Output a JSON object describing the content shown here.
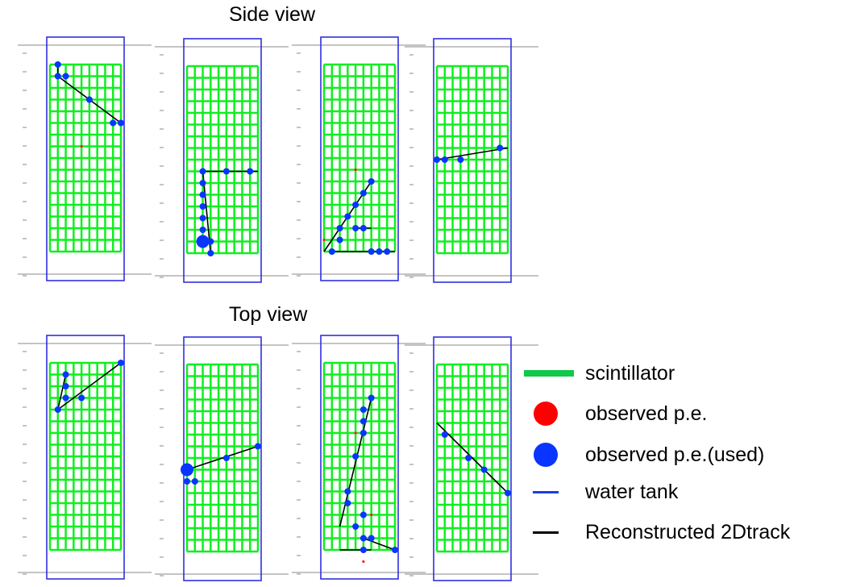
{
  "views": [
    {
      "title": "Side view",
      "panels": [
        {
          "hits": [
            [
              1,
              16,
              1
            ],
            [
              1,
              15,
              0
            ],
            [
              2,
              15,
              1
            ],
            [
              5,
              13,
              0
            ],
            [
              8,
              11,
              0
            ],
            [
              9,
              11,
              0
            ],
            [
              4,
              9,
              0
            ]
          ],
          "used": [
            [
              1,
              16,
              1
            ],
            [
              1,
              15,
              1
            ],
            [
              2,
              15,
              1
            ],
            [
              5,
              13,
              1
            ],
            [
              8,
              11,
              1
            ],
            [
              9,
              11,
              1
            ]
          ],
          "tracks": [
            [
              [
                1,
                16
              ],
              [
                1,
                15
              ],
              [
                9,
                11
              ]
            ]
          ]
        },
        {
          "hits": [
            [
              2,
              7,
              1
            ],
            [
              2,
              6,
              0
            ],
            [
              2,
              5,
              0
            ],
            [
              2,
              4,
              0
            ],
            [
              2,
              3,
              0
            ],
            [
              2,
              2,
              1
            ],
            [
              2,
              1,
              2
            ],
            [
              3,
              1,
              1
            ],
            [
              3,
              0,
              1
            ],
            [
              8,
              7,
              1
            ],
            [
              5,
              7,
              0
            ]
          ],
          "used": [
            [
              2,
              7,
              1
            ],
            [
              2,
              6,
              1
            ],
            [
              2,
              5,
              1
            ],
            [
              2,
              4,
              1
            ],
            [
              2,
              3,
              1
            ],
            [
              2,
              2,
              1
            ],
            [
              2,
              1,
              2
            ],
            [
              3,
              1,
              1
            ],
            [
              3,
              0,
              1
            ],
            [
              8,
              7,
              1
            ],
            [
              5,
              7,
              1
            ]
          ],
          "tracks": [
            [
              [
                2,
                7
              ],
              [
                9,
                7
              ]
            ],
            [
              [
                2,
                7
              ],
              [
                3,
                0
              ]
            ]
          ]
        },
        {
          "hits": [
            [
              1,
              0,
              0
            ],
            [
              2,
              1,
              1
            ],
            [
              2,
              2,
              0
            ],
            [
              3,
              3,
              0
            ],
            [
              4,
              4,
              1
            ],
            [
              5,
              5,
              1
            ],
            [
              6,
              6,
              1
            ],
            [
              4,
              2,
              0
            ],
            [
              5,
              2,
              1
            ],
            [
              6,
              0,
              0
            ],
            [
              7,
              0,
              1
            ],
            [
              8,
              0,
              0
            ],
            [
              0,
              1,
              0
            ],
            [
              4,
              7,
              0
            ]
          ],
          "used": [
            [
              1,
              0,
              1
            ],
            [
              2,
              1,
              1
            ],
            [
              2,
              2,
              1
            ],
            [
              3,
              3,
              1
            ],
            [
              4,
              4,
              1
            ],
            [
              5,
              5,
              1
            ],
            [
              6,
              6,
              1
            ],
            [
              4,
              2,
              1
            ],
            [
              5,
              2,
              1
            ],
            [
              6,
              0,
              1
            ],
            [
              7,
              0,
              1
            ],
            [
              8,
              0,
              1
            ]
          ],
          "tracks": [
            [
              [
                0,
                0
              ],
              [
                6,
                6
              ]
            ],
            [
              [
                1,
                0
              ],
              [
                9,
                0
              ]
            ],
            [
              [
                4,
                2
              ],
              [
                6,
                2
              ]
            ]
          ]
        },
        {
          "hits": [
            [
              1,
              8,
              0
            ],
            [
              3,
              8,
              1
            ],
            [
              8,
              9,
              1
            ],
            [
              0,
              8,
              0
            ]
          ],
          "used": [
            [
              1,
              8,
              1
            ],
            [
              3,
              8,
              1
            ],
            [
              8,
              9,
              1
            ],
            [
              0,
              8,
              1
            ]
          ],
          "tracks": [
            [
              [
                0,
                8
              ],
              [
                9,
                9
              ]
            ]
          ]
        }
      ]
    },
    {
      "title": "Top view",
      "panels": [
        {
          "hits": [
            [
              2,
              15,
              1
            ],
            [
              2,
              14,
              1
            ],
            [
              2,
              13,
              1
            ],
            [
              1,
              12,
              1
            ],
            [
              4,
              13,
              0
            ],
            [
              9,
              16,
              1
            ]
          ],
          "used": [
            [
              2,
              15,
              1
            ],
            [
              2,
              14,
              1
            ],
            [
              2,
              13,
              1
            ],
            [
              1,
              12,
              1
            ],
            [
              4,
              13,
              1
            ],
            [
              9,
              16,
              1
            ]
          ],
          "tracks": [
            [
              [
                1,
                12
              ],
              [
                9,
                16
              ]
            ],
            [
              [
                1,
                12
              ],
              [
                2,
                15
              ]
            ]
          ]
        },
        {
          "hits": [
            [
              0,
              7,
              2
            ],
            [
              0,
              6,
              1
            ],
            [
              1,
              6,
              1
            ],
            [
              5,
              8,
              0
            ],
            [
              9,
              9,
              0
            ]
          ],
          "used": [
            [
              0,
              7,
              2
            ],
            [
              0,
              6,
              1
            ],
            [
              1,
              6,
              1
            ],
            [
              5,
              8,
              1
            ],
            [
              9,
              9,
              1
            ]
          ],
          "tracks": [
            [
              [
                0,
                7
              ],
              [
                9,
                9
              ]
            ]
          ]
        },
        {
          "hits": [
            [
              6,
              13,
              0
            ],
            [
              5,
              12,
              1
            ],
            [
              5,
              11,
              1
            ],
            [
              5,
              10,
              1
            ],
            [
              4,
              8,
              0
            ],
            [
              3,
              5,
              1
            ],
            [
              3,
              4,
              1
            ],
            [
              5,
              3,
              0
            ],
            [
              4,
              2,
              0
            ],
            [
              5,
              1,
              0
            ],
            [
              6,
              1,
              0
            ],
            [
              9,
              0,
              0
            ],
            [
              5,
              0,
              0
            ],
            [
              4,
              10,
              0
            ],
            [
              6,
              3,
              0
            ],
            [
              5,
              -1,
              0
            ]
          ],
          "used": [
            [
              6,
              13,
              1
            ],
            [
              5,
              12,
              1
            ],
            [
              5,
              11,
              1
            ],
            [
              5,
              10,
              1
            ],
            [
              4,
              8,
              1
            ],
            [
              3,
              5,
              1
            ],
            [
              3,
              4,
              1
            ],
            [
              5,
              3,
              1
            ],
            [
              4,
              2,
              1
            ],
            [
              5,
              1,
              1
            ],
            [
              6,
              1,
              1
            ],
            [
              9,
              0,
              1
            ],
            [
              5,
              0,
              1
            ]
          ],
          "tracks": [
            [
              [
                2,
                2
              ],
              [
                6,
                13
              ]
            ],
            [
              [
                2,
                0
              ],
              [
                6,
                0
              ]
            ],
            [
              [
                5,
                1
              ],
              [
                9,
                0
              ]
            ]
          ]
        },
        {
          "hits": [
            [
              1,
              10,
              0
            ],
            [
              4,
              8,
              0
            ],
            [
              6,
              7,
              0
            ],
            [
              9,
              5,
              0
            ]
          ],
          "used": [
            [
              1,
              10,
              1
            ],
            [
              4,
              8,
              1
            ],
            [
              6,
              7,
              1
            ],
            [
              9,
              5,
              1
            ]
          ],
          "tracks": [
            [
              [
                0,
                11
              ],
              [
                9,
                5
              ]
            ]
          ]
        }
      ]
    }
  ],
  "legend": [
    {
      "label": "scintillator",
      "color": "#10c84a",
      "icon": "scintillator-bar"
    },
    {
      "label": "observed p.e.",
      "color": "#ff0000",
      "icon": "red-dot"
    },
    {
      "label": "observed p.e.(used)",
      "color": "#0a35ff",
      "icon": "blue-dot"
    },
    {
      "label": "water tank",
      "color": "#1a3fe0",
      "icon": "blue-line"
    },
    {
      "label": "Reconstructed 2Dtrack",
      "color": "#000000",
      "icon": "black-line"
    }
  ],
  "colors": {
    "grid": "#10ee20",
    "tank": "#3030e0",
    "used": "#0a35ff",
    "obs": "#ff2020",
    "track": "#000000",
    "axis": "#888888"
  }
}
